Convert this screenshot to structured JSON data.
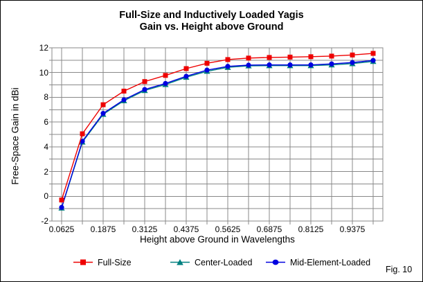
{
  "figure": {
    "title_line1": "Full-Size and Inductively Loaded Yagis",
    "title_line2": "Gain vs. Height above Ground",
    "fig_label": "Fig. 10"
  },
  "chart_data": {
    "type": "line",
    "title": "Full-Size and Inductively Loaded Yagis — Gain vs. Height above Ground",
    "xlabel": "Height above Ground in Wavelengths",
    "ylabel": "Free-Space Gain in dBi",
    "x": [
      0.0625,
      0.125,
      0.1875,
      0.25,
      0.3125,
      0.375,
      0.4375,
      0.5,
      0.5625,
      0.625,
      0.6875,
      0.75,
      0.8125,
      0.875,
      0.9375,
      1.0
    ],
    "x_tick_labels": [
      "0.0625",
      "0.1875",
      "0.3125",
      "0.4375",
      "0.5625",
      "0.6875",
      "0.8125",
      "0.9375"
    ],
    "y_tick_values": [
      12,
      10,
      8,
      6,
      4,
      2,
      0,
      -2
    ],
    "y_tick_labels": [
      "12",
      "10",
      "8",
      "6",
      "4",
      "2",
      "0",
      "-2"
    ],
    "ylim": [
      -2,
      12
    ],
    "y_grid_step": 1,
    "grid": "on",
    "grid_color": "#888888",
    "legend_position": "bottom",
    "series": [
      {
        "name": "Full-Size",
        "color": "#ee0000",
        "marker": "square",
        "values": [
          -0.3,
          5.05,
          7.4,
          8.5,
          9.27,
          9.77,
          10.32,
          10.75,
          11.05,
          11.17,
          11.22,
          11.25,
          11.28,
          11.33,
          11.42,
          11.55
        ]
      },
      {
        "name": "Center-Loaded",
        "color": "#008080",
        "marker": "triangle",
        "values": [
          -0.95,
          4.38,
          6.62,
          7.72,
          8.55,
          9.03,
          9.62,
          10.1,
          10.42,
          10.54,
          10.56,
          10.56,
          10.56,
          10.62,
          10.72,
          10.9
        ]
      },
      {
        "name": "Mid-Element-Loaded",
        "color": "#0000e0",
        "marker": "circle",
        "values": [
          -0.9,
          4.45,
          6.7,
          7.8,
          8.63,
          9.12,
          9.7,
          10.2,
          10.5,
          10.6,
          10.62,
          10.62,
          10.62,
          10.7,
          10.81,
          10.98
        ]
      }
    ]
  }
}
